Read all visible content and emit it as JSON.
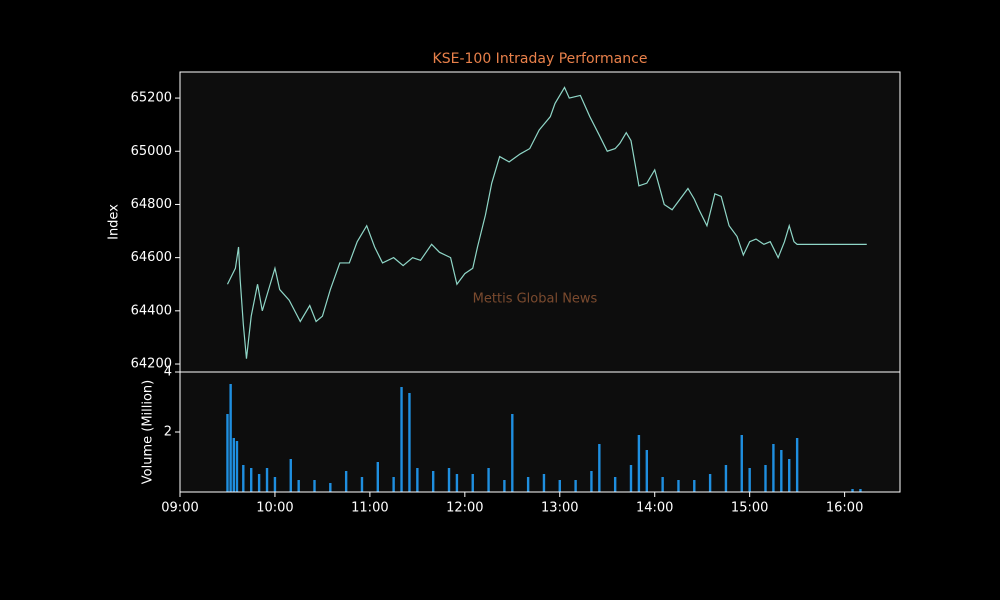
{
  "chart_data": [
    {
      "type": "line",
      "title": "KSE-100 Intraday Performance",
      "y_label": "Index",
      "annotation": "Mettis Global News",
      "color": "#8fd6c7",
      "x": [
        "09:30",
        "09:35",
        "09:37",
        "09:38",
        "09:40",
        "09:42",
        "09:45",
        "09:49",
        "09:52",
        "09:57",
        "10:00",
        "10:03",
        "10:09",
        "10:16",
        "10:22",
        "10:26",
        "10:30",
        "10:35",
        "10:41",
        "10:47",
        "10:52",
        "10:58",
        "11:03",
        "11:08",
        "11:15",
        "11:21",
        "11:27",
        "11:32",
        "11:39",
        "11:44",
        "11:51",
        "11:55",
        "12:00",
        "12:05",
        "12:08",
        "12:13",
        "12:17",
        "12:22",
        "12:28",
        "12:35",
        "12:41",
        "12:47",
        "12:54",
        "12:57",
        "13:03",
        "13:06",
        "13:13",
        "13:19",
        "13:25",
        "13:30",
        "13:35",
        "13:38",
        "13:42",
        "13:45",
        "13:50",
        "13:55",
        "14:00",
        "14:06",
        "14:11",
        "14:16",
        "14:21",
        "14:25",
        "14:28",
        "14:33",
        "14:38",
        "14:42",
        "14:47",
        "14:52",
        "14:56",
        "15:00",
        "15:04",
        "15:09",
        "15:13",
        "15:18",
        "15:22",
        "15:25",
        "15:28",
        "15:30",
        "16:14"
      ],
      "values": [
        64500,
        64560,
        64640,
        64520,
        64350,
        64220,
        64380,
        64500,
        64400,
        64500,
        64560,
        64480,
        64440,
        64360,
        64420,
        64360,
        64380,
        64480,
        64580,
        64580,
        64660,
        64720,
        64640,
        64580,
        64600,
        64570,
        64600,
        64590,
        64650,
        64620,
        64600,
        64500,
        64540,
        64560,
        64640,
        64760,
        64880,
        64980,
        64960,
        64990,
        65010,
        65080,
        65130,
        65180,
        65240,
        65200,
        65210,
        65130,
        65060,
        65000,
        65010,
        65030,
        65070,
        65040,
        64870,
        64880,
        64930,
        64800,
        64780,
        64820,
        64860,
        64820,
        64780,
        64720,
        64840,
        64830,
        64720,
        64680,
        64610,
        64660,
        64670,
        64650,
        64660,
        64600,
        64660,
        64720,
        64660,
        64650,
        64650
      ],
      "xlim": [
        "09:00",
        "16:35"
      ],
      "ylim": [
        64170,
        65298
      ],
      "yticks": [
        64200,
        64400,
        64600,
        64800,
        65000,
        65200
      ]
    },
    {
      "type": "bar",
      "y_label": "Volume (Million)",
      "color": "#1f8fe0",
      "x": [
        "09:30",
        "09:32",
        "09:34",
        "09:36",
        "09:40",
        "09:45",
        "09:50",
        "09:55",
        "10:00",
        "10:10",
        "10:15",
        "10:25",
        "10:35",
        "10:45",
        "10:55",
        "11:05",
        "11:15",
        "11:20",
        "11:25",
        "11:30",
        "11:40",
        "11:50",
        "11:55",
        "12:05",
        "12:15",
        "12:25",
        "12:30",
        "12:40",
        "12:50",
        "13:00",
        "13:10",
        "13:20",
        "13:25",
        "13:35",
        "13:45",
        "13:50",
        "13:55",
        "14:05",
        "14:15",
        "14:25",
        "14:35",
        "14:45",
        "14:55",
        "15:00",
        "15:10",
        "15:15",
        "15:20",
        "15:25",
        "15:30",
        "16:05",
        "16:10"
      ],
      "values": [
        2.6,
        3.6,
        1.8,
        1.7,
        0.9,
        0.8,
        0.6,
        0.8,
        0.5,
        1.1,
        0.4,
        0.4,
        0.3,
        0.7,
        0.5,
        1.0,
        0.5,
        3.5,
        3.3,
        0.8,
        0.7,
        0.8,
        0.6,
        0.6,
        0.8,
        0.4,
        2.6,
        0.5,
        0.6,
        0.4,
        0.4,
        0.7,
        1.6,
        0.5,
        0.9,
        1.9,
        1.4,
        0.5,
        0.4,
        0.4,
        0.6,
        0.9,
        1.9,
        0.8,
        0.9,
        1.6,
        1.4,
        1.1,
        1.8,
        0.1,
        0.1
      ],
      "xlim": [
        "09:00",
        "16:35"
      ],
      "ylim": [
        0,
        4
      ],
      "yticks": [
        2,
        4
      ],
      "xticks": [
        "09:00",
        "10:00",
        "11:00",
        "12:00",
        "13:00",
        "14:00",
        "15:00",
        "16:00"
      ]
    }
  ]
}
